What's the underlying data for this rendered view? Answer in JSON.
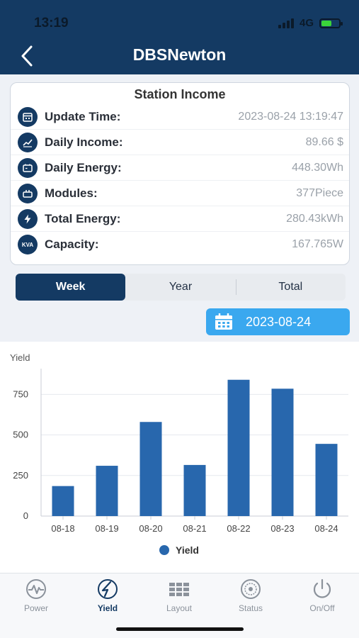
{
  "status_bar": {
    "time": "13:19",
    "network": "4G"
  },
  "header": {
    "title": "DBSNewton"
  },
  "station_income": {
    "title": "Station Income",
    "rows": [
      {
        "label": "Update Time:",
        "value": "2023-08-24 13:19:47",
        "icon": "calendar-icon"
      },
      {
        "label": "Daily Income:",
        "value": "89.66 $",
        "icon": "trend-icon"
      },
      {
        "label": "Daily Energy:",
        "value": "448.30Wh",
        "icon": "battery-icon"
      },
      {
        "label": "Modules:",
        "value": "377Piece",
        "icon": "module-icon"
      },
      {
        "label": "Total Energy:",
        "value": "280.43kWh",
        "icon": "bolt-icon"
      },
      {
        "label": "Capacity:",
        "value": "167.765W",
        "icon": "kva-icon",
        "icon_text": "KVA"
      }
    ]
  },
  "segments": [
    {
      "label": "Week",
      "active": true
    },
    {
      "label": "Year",
      "active": false
    },
    {
      "label": "Total",
      "active": false
    }
  ],
  "date_picker": {
    "value": "2023-08-24"
  },
  "chart_data": {
    "type": "bar",
    "ylabel": "Yield",
    "categories": [
      "08-18",
      "08-19",
      "08-20",
      "08-21",
      "08-22",
      "08-23",
      "08-24"
    ],
    "series": [
      {
        "name": "Yield",
        "values": [
          185,
          310,
          580,
          315,
          840,
          785,
          445
        ]
      }
    ],
    "yticks": [
      0,
      250,
      500,
      750
    ],
    "ylim": [
      0,
      900
    ],
    "grid": true,
    "legend": "bottom-center",
    "bar_color": "#2867ad"
  },
  "tabbar": [
    {
      "label": "Power",
      "icon": "power-wave-icon",
      "active": false
    },
    {
      "label": "Yield",
      "icon": "yield-icon",
      "active": true
    },
    {
      "label": "Layout",
      "icon": "layout-grid-icon",
      "active": false
    },
    {
      "label": "Status",
      "icon": "status-gauge-icon",
      "active": false
    },
    {
      "label": "On/Off",
      "icon": "on-off-icon",
      "active": false
    }
  ],
  "colors": {
    "primary": "#143a63",
    "accent": "#3aa8ef",
    "bar": "#2867ad"
  }
}
